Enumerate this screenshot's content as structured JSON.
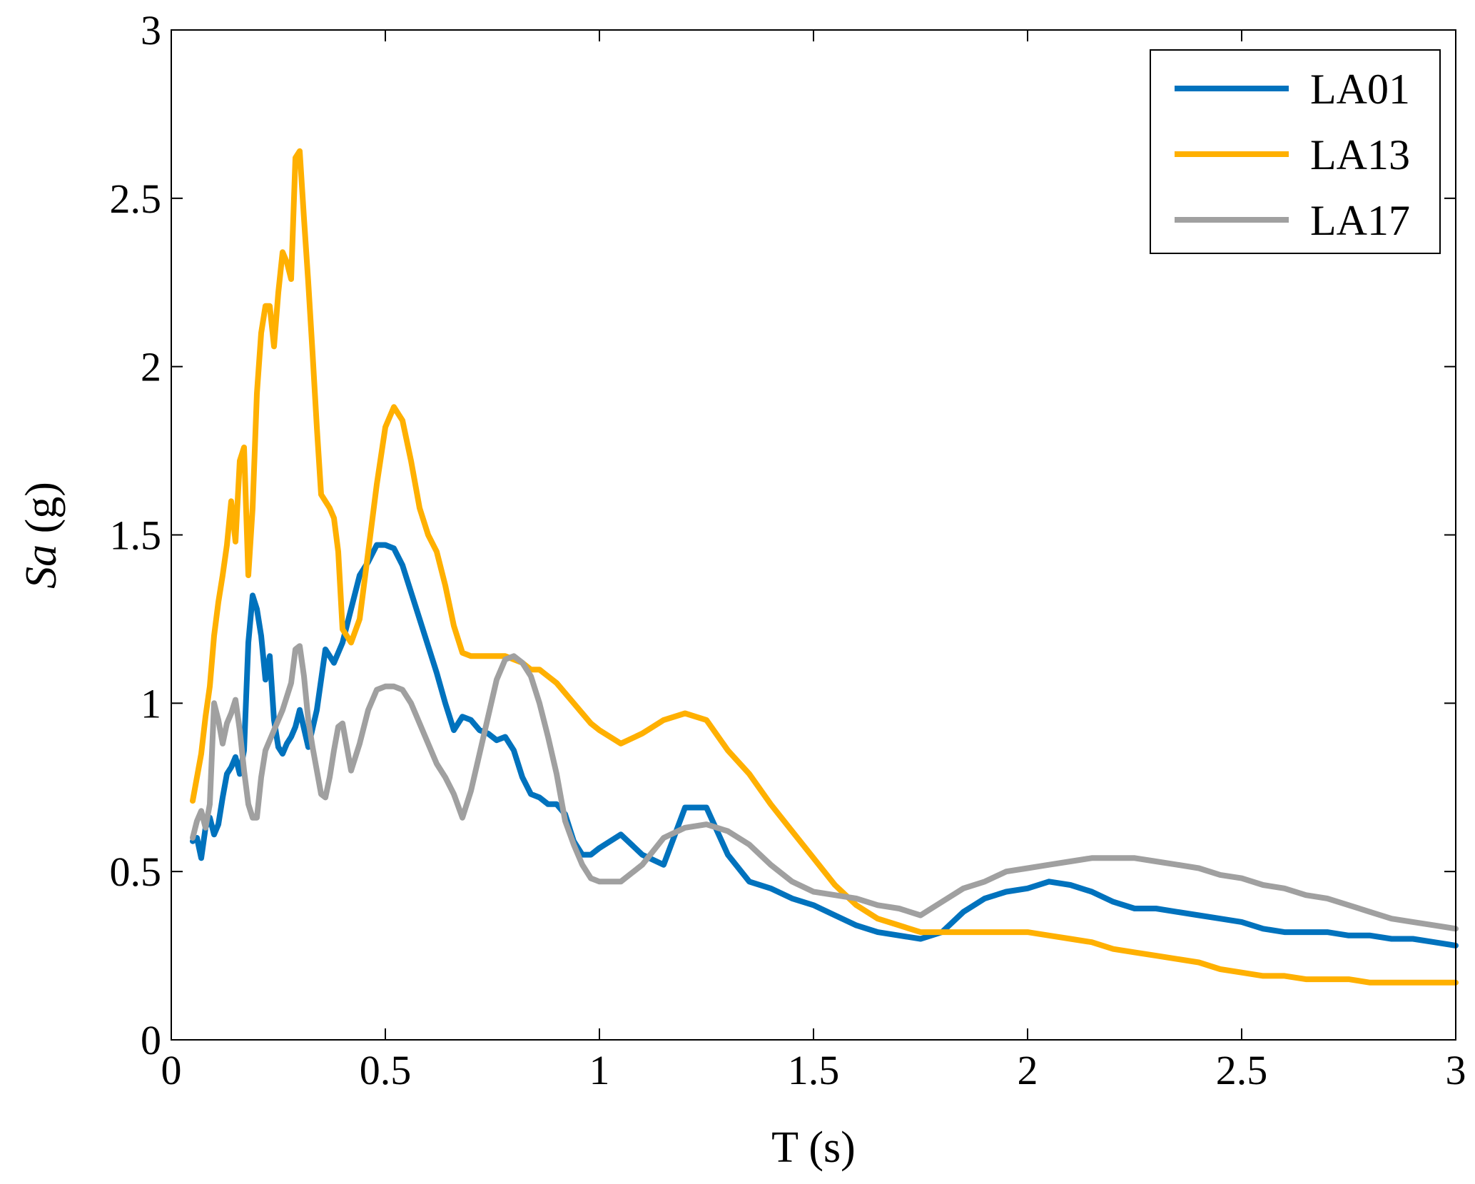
{
  "chart_data": {
    "type": "line",
    "xlabel": "T (s)",
    "ylabel_main": "Sa",
    "ylabel_unit": "(g)",
    "xlim": [
      0,
      3
    ],
    "ylim": [
      0,
      3
    ],
    "xticks": [
      0,
      0.5,
      1,
      1.5,
      2,
      2.5,
      3
    ],
    "yticks": [
      0,
      0.5,
      1,
      1.5,
      2,
      2.5,
      3
    ],
    "xtick_labels": [
      "0",
      "0.5",
      "1",
      "1.5",
      "2",
      "2.5",
      "3"
    ],
    "ytick_labels": [
      "0",
      "0.5",
      "1",
      "1.5",
      "2",
      "2.5",
      "3"
    ],
    "grid": false,
    "legend_position": "top-right",
    "series": [
      {
        "name": "LA01",
        "color": "#0072BD",
        "x": [
          0.05,
          0.06,
          0.07,
          0.08,
          0.09,
          0.1,
          0.11,
          0.12,
          0.13,
          0.14,
          0.15,
          0.16,
          0.17,
          0.18,
          0.19,
          0.2,
          0.21,
          0.22,
          0.23,
          0.24,
          0.25,
          0.26,
          0.27,
          0.28,
          0.29,
          0.3,
          0.32,
          0.34,
          0.36,
          0.38,
          0.4,
          0.42,
          0.44,
          0.46,
          0.48,
          0.5,
          0.52,
          0.54,
          0.56,
          0.58,
          0.6,
          0.62,
          0.64,
          0.66,
          0.68,
          0.7,
          0.72,
          0.74,
          0.76,
          0.78,
          0.8,
          0.82,
          0.84,
          0.86,
          0.88,
          0.9,
          0.92,
          0.94,
          0.96,
          0.98,
          1.0,
          1.05,
          1.1,
          1.15,
          1.2,
          1.25,
          1.3,
          1.35,
          1.4,
          1.45,
          1.5,
          1.55,
          1.6,
          1.65,
          1.7,
          1.75,
          1.8,
          1.85,
          1.9,
          1.95,
          2.0,
          2.05,
          2.1,
          2.15,
          2.2,
          2.25,
          2.3,
          2.35,
          2.4,
          2.45,
          2.5,
          2.55,
          2.6,
          2.65,
          2.7,
          2.75,
          2.8,
          2.85,
          2.9,
          2.95,
          3.0
        ],
        "y": [
          0.59,
          0.6,
          0.54,
          0.63,
          0.66,
          0.61,
          0.64,
          0.72,
          0.79,
          0.81,
          0.84,
          0.79,
          0.86,
          1.18,
          1.32,
          1.28,
          1.2,
          1.07,
          1.14,
          0.95,
          0.87,
          0.85,
          0.88,
          0.9,
          0.93,
          0.98,
          0.87,
          0.98,
          1.16,
          1.12,
          1.18,
          1.28,
          1.38,
          1.42,
          1.47,
          1.47,
          1.46,
          1.41,
          1.33,
          1.25,
          1.17,
          1.09,
          1.0,
          0.92,
          0.96,
          0.95,
          0.92,
          0.91,
          0.89,
          0.9,
          0.86,
          0.78,
          0.73,
          0.72,
          0.7,
          0.7,
          0.67,
          0.59,
          0.55,
          0.55,
          0.57,
          0.61,
          0.55,
          0.52,
          0.69,
          0.69,
          0.55,
          0.47,
          0.45,
          0.42,
          0.4,
          0.37,
          0.34,
          0.32,
          0.31,
          0.3,
          0.32,
          0.38,
          0.42,
          0.44,
          0.45,
          0.47,
          0.46,
          0.44,
          0.41,
          0.39,
          0.39,
          0.38,
          0.37,
          0.36,
          0.35,
          0.33,
          0.32,
          0.32,
          0.32,
          0.31,
          0.31,
          0.3,
          0.3,
          0.29,
          0.28
        ]
      },
      {
        "name": "LA13",
        "color": "#FFB000",
        "x": [
          0.05,
          0.06,
          0.07,
          0.08,
          0.09,
          0.1,
          0.11,
          0.12,
          0.13,
          0.14,
          0.15,
          0.16,
          0.17,
          0.18,
          0.19,
          0.2,
          0.21,
          0.22,
          0.23,
          0.24,
          0.25,
          0.26,
          0.27,
          0.28,
          0.29,
          0.3,
          0.31,
          0.32,
          0.33,
          0.34,
          0.35,
          0.36,
          0.37,
          0.38,
          0.39,
          0.4,
          0.42,
          0.44,
          0.46,
          0.48,
          0.5,
          0.52,
          0.54,
          0.56,
          0.58,
          0.6,
          0.62,
          0.64,
          0.66,
          0.68,
          0.7,
          0.72,
          0.74,
          0.76,
          0.78,
          0.8,
          0.82,
          0.84,
          0.86,
          0.88,
          0.9,
          0.92,
          0.94,
          0.96,
          0.98,
          1.0,
          1.05,
          1.1,
          1.15,
          1.2,
          1.25,
          1.3,
          1.35,
          1.4,
          1.45,
          1.5,
          1.55,
          1.6,
          1.65,
          1.7,
          1.75,
          1.8,
          1.85,
          1.9,
          1.95,
          2.0,
          2.05,
          2.1,
          2.15,
          2.2,
          2.25,
          2.3,
          2.35,
          2.4,
          2.45,
          2.5,
          2.55,
          2.6,
          2.65,
          2.7,
          2.75,
          2.8,
          2.85,
          2.9,
          2.95,
          3.0
        ],
        "y": [
          0.71,
          0.78,
          0.85,
          0.96,
          1.05,
          1.2,
          1.3,
          1.38,
          1.47,
          1.6,
          1.48,
          1.72,
          1.76,
          1.38,
          1.58,
          1.92,
          2.1,
          2.18,
          2.18,
          2.06,
          2.22,
          2.34,
          2.31,
          2.26,
          2.62,
          2.64,
          2.44,
          2.25,
          2.04,
          1.82,
          1.62,
          1.6,
          1.58,
          1.55,
          1.45,
          1.22,
          1.18,
          1.25,
          1.45,
          1.65,
          1.82,
          1.88,
          1.84,
          1.72,
          1.58,
          1.5,
          1.45,
          1.35,
          1.23,
          1.15,
          1.14,
          1.14,
          1.14,
          1.14,
          1.14,
          1.13,
          1.12,
          1.1,
          1.1,
          1.08,
          1.06,
          1.03,
          1.0,
          0.97,
          0.94,
          0.92,
          0.88,
          0.91,
          0.95,
          0.97,
          0.95,
          0.86,
          0.79,
          0.7,
          0.62,
          0.54,
          0.46,
          0.4,
          0.36,
          0.34,
          0.32,
          0.32,
          0.32,
          0.32,
          0.32,
          0.32,
          0.31,
          0.3,
          0.29,
          0.27,
          0.26,
          0.25,
          0.24,
          0.23,
          0.21,
          0.2,
          0.19,
          0.19,
          0.18,
          0.18,
          0.18,
          0.17,
          0.17,
          0.17,
          0.17,
          0.17
        ]
      },
      {
        "name": "LA17",
        "color": "#A0A0A0",
        "x": [
          0.05,
          0.06,
          0.07,
          0.08,
          0.09,
          0.1,
          0.11,
          0.12,
          0.13,
          0.14,
          0.15,
          0.16,
          0.17,
          0.18,
          0.19,
          0.2,
          0.21,
          0.22,
          0.23,
          0.24,
          0.25,
          0.26,
          0.27,
          0.28,
          0.29,
          0.3,
          0.31,
          0.32,
          0.33,
          0.34,
          0.35,
          0.36,
          0.37,
          0.38,
          0.39,
          0.4,
          0.42,
          0.44,
          0.46,
          0.48,
          0.5,
          0.52,
          0.54,
          0.56,
          0.58,
          0.6,
          0.62,
          0.64,
          0.66,
          0.68,
          0.7,
          0.72,
          0.74,
          0.76,
          0.78,
          0.8,
          0.82,
          0.84,
          0.86,
          0.88,
          0.9,
          0.92,
          0.94,
          0.96,
          0.98,
          1.0,
          1.05,
          1.1,
          1.15,
          1.2,
          1.25,
          1.3,
          1.35,
          1.4,
          1.45,
          1.5,
          1.55,
          1.6,
          1.65,
          1.7,
          1.75,
          1.8,
          1.85,
          1.9,
          1.95,
          2.0,
          2.05,
          2.1,
          2.15,
          2.2,
          2.25,
          2.3,
          2.35,
          2.4,
          2.45,
          2.5,
          2.55,
          2.6,
          2.65,
          2.7,
          2.75,
          2.8,
          2.85,
          2.9,
          2.95,
          3.0
        ],
        "y": [
          0.6,
          0.65,
          0.68,
          0.63,
          0.7,
          1.0,
          0.95,
          0.88,
          0.94,
          0.97,
          1.01,
          0.92,
          0.8,
          0.7,
          0.66,
          0.66,
          0.78,
          0.86,
          0.89,
          0.92,
          0.95,
          0.98,
          1.02,
          1.06,
          1.16,
          1.17,
          1.08,
          0.95,
          0.87,
          0.8,
          0.73,
          0.72,
          0.78,
          0.86,
          0.93,
          0.94,
          0.8,
          0.88,
          0.98,
          1.04,
          1.05,
          1.05,
          1.04,
          1.0,
          0.94,
          0.88,
          0.82,
          0.78,
          0.73,
          0.66,
          0.74,
          0.85,
          0.96,
          1.07,
          1.13,
          1.14,
          1.12,
          1.08,
          1.0,
          0.9,
          0.79,
          0.65,
          0.58,
          0.52,
          0.48,
          0.47,
          0.47,
          0.52,
          0.6,
          0.63,
          0.64,
          0.62,
          0.58,
          0.52,
          0.47,
          0.44,
          0.43,
          0.42,
          0.4,
          0.39,
          0.37,
          0.41,
          0.45,
          0.47,
          0.5,
          0.51,
          0.52,
          0.53,
          0.54,
          0.54,
          0.54,
          0.53,
          0.52,
          0.51,
          0.49,
          0.48,
          0.46,
          0.45,
          0.43,
          0.42,
          0.4,
          0.38,
          0.36,
          0.35,
          0.34,
          0.33
        ]
      }
    ]
  }
}
